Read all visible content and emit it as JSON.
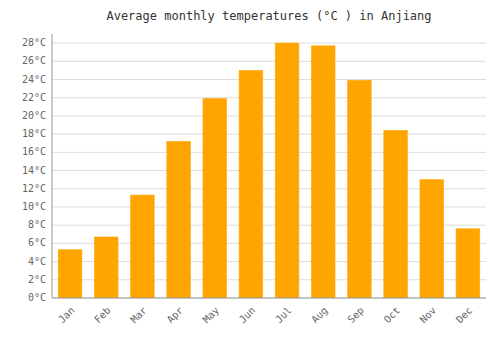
{
  "chart_data": {
    "type": "bar",
    "title": "Average monthly temperatures (°C ) in Anjiang",
    "categories": [
      "Jan",
      "Feb",
      "Mar",
      "Apr",
      "May",
      "Jun",
      "Jul",
      "Aug",
      "Sep",
      "Oct",
      "Nov",
      "Dec"
    ],
    "values": [
      5.3,
      6.7,
      11.3,
      17.2,
      21.9,
      25.0,
      28.0,
      27.7,
      23.9,
      18.4,
      13.0,
      7.6
    ],
    "color": "#FFA500",
    "ylim": [
      0,
      29
    ],
    "yticks": [
      {
        "value": 0,
        "label": "0°C"
      },
      {
        "value": 2,
        "label": "2°C"
      },
      {
        "value": 4,
        "label": "4°C"
      },
      {
        "value": 6,
        "label": "6°C"
      },
      {
        "value": 8,
        "label": "8°C"
      },
      {
        "value": 10,
        "label": "10°C"
      },
      {
        "value": 12,
        "label": "12°C"
      },
      {
        "value": 14,
        "label": "14°C"
      },
      {
        "value": 16,
        "label": "16°C"
      },
      {
        "value": 18,
        "label": "18°C"
      },
      {
        "value": 20,
        "label": "20°C"
      },
      {
        "value": 22,
        "label": "22°C"
      },
      {
        "value": 24,
        "label": "24°C"
      },
      {
        "value": 26,
        "label": "26°C"
      },
      {
        "value": 28,
        "label": "28°C"
      }
    ],
    "grid": true
  }
}
